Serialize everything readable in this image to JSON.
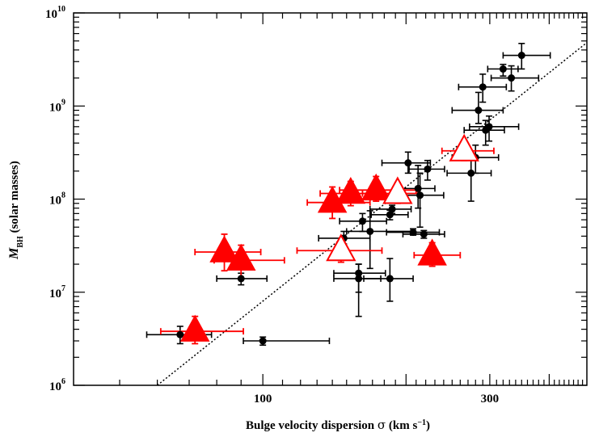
{
  "chart_data": {
    "type": "scatter",
    "xlabel": {
      "prefix": "Bulge velocity dispersion ",
      "symbol": "σ",
      "unit": " (km s",
      "exp": "−1",
      "close": ")"
    },
    "ylabel": {
      "symbol": "M",
      "sub": "BH",
      "unit": " (solar masses)"
    },
    "x_scale": "log",
    "y_scale": "log",
    "xlim": [
      40,
      480
    ],
    "ylim": [
      1000000,
      10000000000
    ],
    "x_ticks": [
      {
        "value": 100,
        "label": "100"
      },
      {
        "value": 300,
        "label": "300"
      }
    ],
    "y_ticks": [
      {
        "value": 1000000,
        "base": "10",
        "exp": "6"
      },
      {
        "value": 10000000,
        "base": "10",
        "exp": "7"
      },
      {
        "value": 100000000,
        "base": "10",
        "exp": "8"
      },
      {
        "value": 1000000000,
        "base": "10",
        "exp": "9"
      },
      {
        "value": 10000000000,
        "base": "10",
        "exp": "10"
      }
    ],
    "grid": false,
    "fit_line": {
      "style": "dotted",
      "x": [
        60,
        480
      ],
      "y": [
        1000000,
        4800000000
      ]
    },
    "series": [
      {
        "marker": "circle-filled",
        "color": "#000000",
        "points": [
          {
            "x": 67,
            "y": 3500000,
            "xerr": [
              57,
              78
            ],
            "yerr": [
              2800000,
              4300000
            ]
          },
          {
            "x": 100,
            "y": 3000000,
            "xerr": [
              91,
              138
            ],
            "yerr": [
              2700000,
              3300000
            ]
          },
          {
            "x": 90,
            "y": 14000000,
            "xerr": [
              80,
              102
            ],
            "yerr": [
              12000000,
              16000000
            ]
          },
          {
            "x": 148,
            "y": 38000000,
            "xerr": [
              131,
              168
            ],
            "yerr": [
              33000000,
              45000000
            ]
          },
          {
            "x": 159,
            "y": 14000000,
            "xerr": [
              141,
              177
            ],
            "yerr": [
              5500000,
              20000000
            ]
          },
          {
            "x": 159,
            "y": 16000000,
            "xerr": [
              141,
              181
            ],
            "yerr": [
              10000000,
              20000000
            ]
          },
          {
            "x": 162,
            "y": 58000000,
            "xerr": [
              145,
              182
            ],
            "yerr": [
              45000000,
              70000000
            ]
          },
          {
            "x": 168,
            "y": 45000000,
            "xerr": [
              150,
              205
            ],
            "yerr": [
              18000000,
              75000000
            ]
          },
          {
            "x": 185,
            "y": 14000000,
            "xerr": [
              163,
              207
            ],
            "yerr": [
              8000000,
              23000000
            ]
          },
          {
            "x": 187,
            "y": 78000000,
            "xerr": [
              168,
              205
            ],
            "yerr": [
              70000000,
              86000000
            ]
          },
          {
            "x": 185,
            "y": 68000000,
            "xerr": [
              169,
              202
            ],
            "yerr": [
              60000000,
              76000000
            ]
          },
          {
            "x": 202,
            "y": 245000000,
            "xerr": [
              178,
              225
            ],
            "yerr": [
              190000000,
              320000000
            ]
          },
          {
            "x": 207,
            "y": 44000000,
            "xerr": [
              182,
              235
            ],
            "yerr": [
              41000000,
              48000000
            ]
          },
          {
            "x": 212,
            "y": 130000000,
            "xerr": [
              190,
              230
            ],
            "yerr": [
              80000000,
              230000000
            ]
          },
          {
            "x": 214,
            "y": 110000000,
            "xerr": [
              190,
              240
            ],
            "yerr": [
              50000000,
              190000000
            ]
          },
          {
            "x": 218,
            "y": 42000000,
            "xerr": [
              197,
              241
            ],
            "yerr": [
              38000000,
              46000000
            ]
          },
          {
            "x": 222,
            "y": 210000000,
            "xerr": [
              203,
              241
            ],
            "yerr": [
              160000000,
              260000000
            ]
          },
          {
            "x": 274,
            "y": 190000000,
            "xerr": [
              244,
              302
            ],
            "yerr": [
              95000000,
              300000000
            ]
          },
          {
            "x": 280,
            "y": 280000000,
            "xerr": [
              250,
              313
            ],
            "yerr": [
              190000000,
              380000000
            ]
          },
          {
            "x": 284,
            "y": 900000000,
            "xerr": [
              250,
              320
            ],
            "yerr": [
              650000000,
              1400000000
            ]
          },
          {
            "x": 290,
            "y": 1600000000,
            "xerr": [
              258,
              325
            ],
            "yerr": [
              1100000000,
              2200000000
            ]
          },
          {
            "x": 294,
            "y": 550000000,
            "xerr": [
              265,
              322
            ],
            "yerr": [
              380000000,
              700000000
            ]
          },
          {
            "x": 299,
            "y": 600000000,
            "xerr": [
              272,
              345
            ],
            "yerr": [
              420000000,
              780000000
            ]
          },
          {
            "x": 320,
            "y": 2500000000,
            "xerr": [
              297,
              344
            ],
            "yerr": [
              2100000000,
              2800000000
            ]
          },
          {
            "x": 333,
            "y": 2000000000,
            "xerr": [
              302,
              380
            ],
            "yerr": [
              1450000000,
              2700000000
            ]
          },
          {
            "x": 350,
            "y": 3500000000,
            "xerr": [
              320,
              402
            ],
            "yerr": [
              2500000000,
              4700000000
            ]
          }
        ]
      },
      {
        "marker": "triangle-filled",
        "color": "#ff0000",
        "points": [
          {
            "x": 72,
            "y": 3800000,
            "xerr": [
              61,
              91
            ],
            "yerr": [
              2800000,
              5500000
            ]
          },
          {
            "x": 83,
            "y": 27000000,
            "xerr": [
              72,
              99
            ],
            "yerr": [
              17000000,
              42000000
            ]
          },
          {
            "x": 90,
            "y": 22000000,
            "xerr": [
              79,
              111
            ],
            "yerr": [
              14000000,
              32000000
            ]
          },
          {
            "x": 140,
            "y": 92000000,
            "xerr": [
              124,
              168
            ],
            "yerr": [
              62000000,
              135000000
            ]
          },
          {
            "x": 153,
            "y": 115000000,
            "xerr": [
              132,
              178
            ],
            "yerr": [
              85000000,
              155000000
            ]
          },
          {
            "x": 173,
            "y": 125000000,
            "xerr": [
              145,
              210
            ],
            "yerr": [
              95000000,
              175000000
            ]
          },
          {
            "x": 227,
            "y": 25000000,
            "xerr": [
              208,
              260
            ],
            "yerr": [
              19000000,
              34000000
            ]
          }
        ]
      },
      {
        "marker": "triangle-open",
        "color": "#ff0000",
        "points": [
          {
            "x": 146,
            "y": 28000000,
            "xerr": [
              118,
              178
            ],
            "yerr": [
              21000000,
              36000000
            ]
          },
          {
            "x": 192,
            "y": 115000000,
            "xerr": [
              162,
              212
            ],
            "yerr": [
              90000000,
              150000000
            ]
          },
          {
            "x": 265,
            "y": 330000000,
            "xerr": [
              238,
              306
            ],
            "yerr": [
              260000000,
              430000000
            ]
          }
        ]
      }
    ]
  }
}
